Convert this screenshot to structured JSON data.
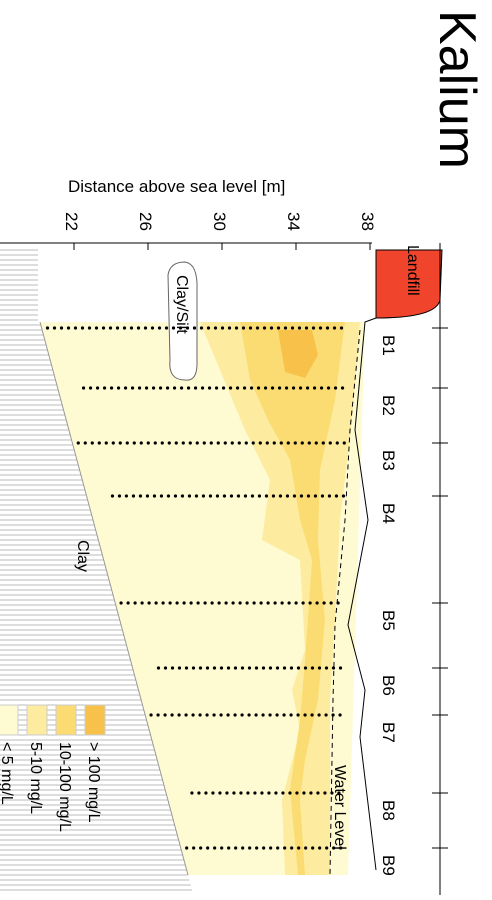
{
  "chart_data": {
    "type": "contour",
    "title": "Kalium",
    "y_label": "Distance  above sea level [m]",
    "ylim": [
      18,
      38
    ],
    "yticks": [
      22,
      26,
      30,
      34,
      38
    ],
    "categories": [
      "B1",
      "B2",
      "B3",
      "B4",
      "B5",
      "B6",
      "B7",
      "B8",
      "B9"
    ],
    "annotations": [
      "Landfill",
      "Clay/Silt",
      "Clay",
      "Water Level"
    ],
    "series": [
      {
        "name": "> 100 mg/L",
        "color": "#f8c24a"
      },
      {
        "name": "10-100 mg/L",
        "color": "#fbdc72"
      },
      {
        "name": "5-10 mg/L",
        "color": "#fdeca0"
      },
      {
        "name": "< 5 mg/L",
        "color": "#fefbd2"
      }
    ]
  }
}
